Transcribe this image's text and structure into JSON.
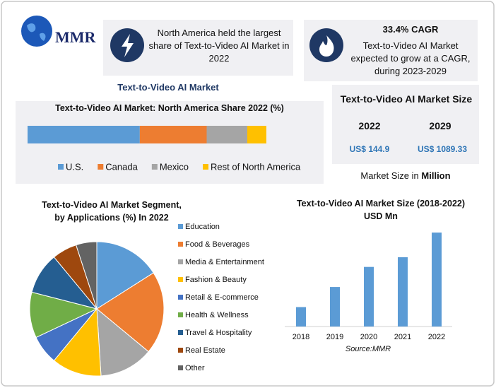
{
  "logo": {
    "text": "MMR"
  },
  "highlights": [
    {
      "text": "North America held the largest share of Text-to-Video AI Market in 2022"
    },
    {
      "title": "33.4% CAGR",
      "text": "Text-to-Video AI Market expected to grow at a CAGR, during 2023-2029"
    }
  ],
  "section_label": "Text-to-Video AI Market",
  "market_size": {
    "title": "Text-to-Video AI Market Size",
    "years": [
      "2022",
      "2029"
    ],
    "values": [
      "US$ 144.9",
      "US$ 1089.33"
    ],
    "note": "Market Size in",
    "note_bold": "Million"
  },
  "chart_data": [
    {
      "type": "bar",
      "orientation": "horizontal",
      "stacked": true,
      "title": "Text-to-Video AI Market: North America Share 2022 (%)",
      "categories": [
        null
      ],
      "xlim": [
        0,
        100
      ],
      "series": [
        {
          "name": "U.S.",
          "color": "#5b9bd5",
          "values": [
            47
          ]
        },
        {
          "name": "Canada",
          "color": "#ed7d31",
          "values": [
            28
          ]
        },
        {
          "name": "Mexico",
          "color": "#a5a5a5",
          "values": [
            17
          ]
        },
        {
          "name": "Rest of North America",
          "color": "#ffc000",
          "values": [
            8
          ]
        }
      ]
    },
    {
      "type": "pie",
      "title": "Text-to-Video AI Market Segment, by Applications  (%) In 2022",
      "categories": [
        "Education",
        " Food & Beverages",
        "Media & Entertainment",
        "Fashion & Beauty",
        "Retail & E-commerce",
        "Health & Wellness",
        "Travel & Hospitality",
        "Real Estate",
        "Other"
      ],
      "values": [
        16,
        20,
        13,
        12,
        7,
        11,
        10,
        6,
        5
      ],
      "colors": [
        "#5b9bd5",
        "#ed7d31",
        "#a5a5a5",
        "#ffc000",
        "#4472c4",
        "#70ad47",
        "#255e91",
        "#9e480e",
        "#636363"
      ]
    },
    {
      "type": "bar",
      "title": "Text-to-Video AI Market Size (2018-2022) USD Mn",
      "categories": [
        "2018",
        "2019",
        "2020",
        "2021",
        "2022"
      ],
      "values": [
        30,
        61,
        92,
        107,
        145
      ],
      "color": "#5b9bd5",
      "ylim": [
        0,
        150
      ],
      "source": "Source:MMR"
    }
  ]
}
